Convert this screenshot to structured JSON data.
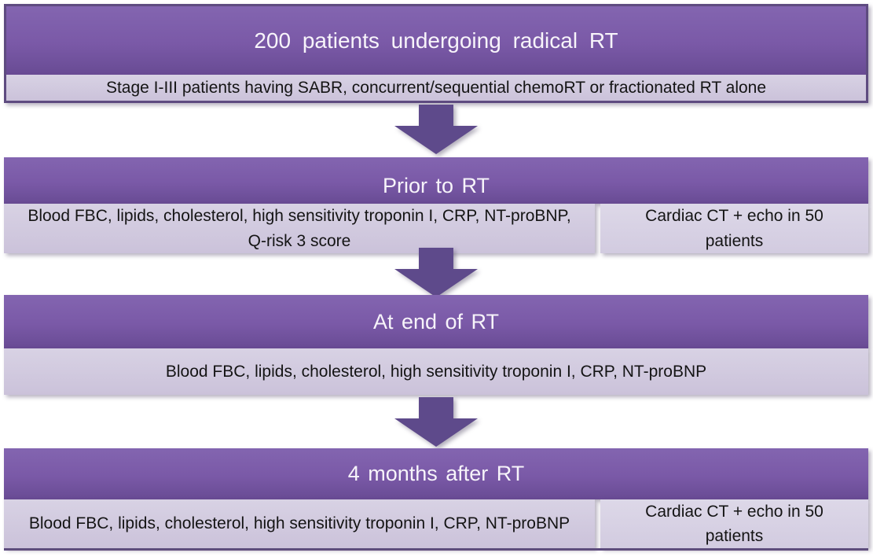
{
  "figure": {
    "entry": {
      "title": "200 patients undergoing radical RT",
      "criteria": "Stage I-III patients having SABR, concurrent/sequential chemoRT or fractionated RT alone"
    },
    "stages": [
      {
        "title": "Prior to RT",
        "tests": "Blood FBC, lipids, cholesterol, high sensitivity troponin I, CRP, NT-proBNP, Q-risk 3 score",
        "imaging": "Cardiac CT + echo in 50 patients"
      },
      {
        "title": "At end of RT",
        "tests": "Blood FBC, lipids, cholesterol, high sensitivity troponin I, CRP, NT-proBNP"
      },
      {
        "title": "4 months after RT",
        "tests": "Blood FBC, lipids, cholesterol, high sensitivity troponin I, CRP, NT-proBNP",
        "imaging": "Cardiac CT + echo in 50 patients"
      }
    ],
    "colors": {
      "header_purple": "#7a59a7",
      "light_panel": "#cfc6dd",
      "side_panel": "#d8d2e4",
      "arrow_purple": "#5e4a8b",
      "outline_purple": "#5e4b80",
      "header_text": "#f7f4fa",
      "body_text": "#141414"
    }
  }
}
